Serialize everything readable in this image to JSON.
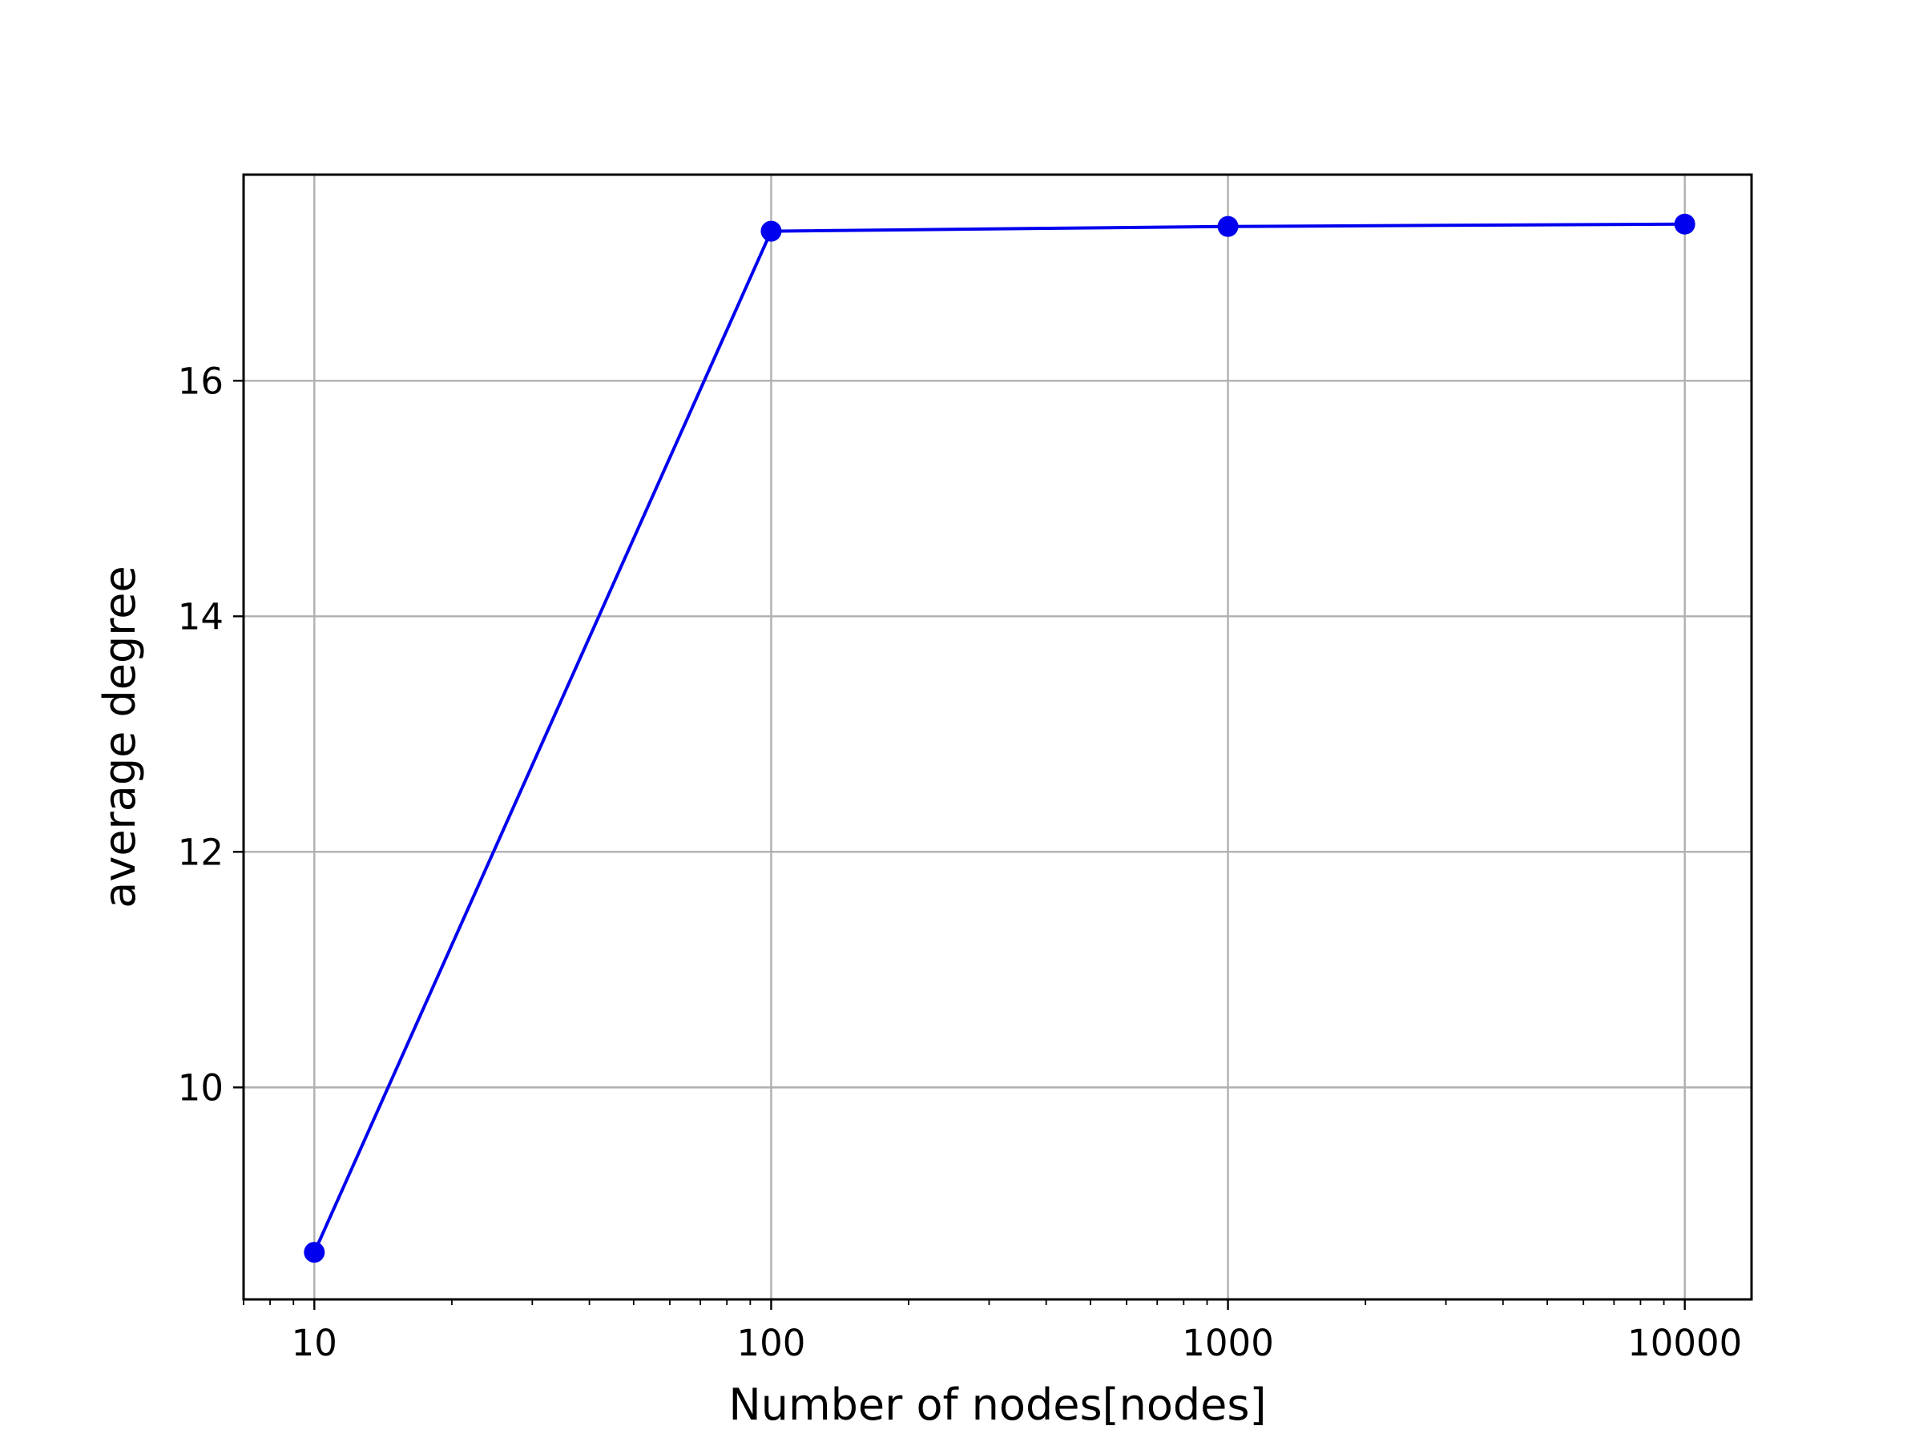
{
  "chart_data": {
    "type": "line",
    "title": "",
    "xlabel": "Number of nodes[nodes]",
    "ylabel": "average degree",
    "x_scale": "log",
    "xlim": [
      7,
      14000
    ],
    "ylim": [
      8.2,
      17.75
    ],
    "x_ticks": [
      {
        "value": 10,
        "label": "10"
      },
      {
        "value": 100,
        "label": "100"
      },
      {
        "value": 1000,
        "label": "1000"
      },
      {
        "value": 10000,
        "label": "10000"
      }
    ],
    "y_ticks": [
      {
        "value": 10,
        "label": "10"
      },
      {
        "value": 12,
        "label": "12"
      },
      {
        "value": 14,
        "label": "14"
      },
      {
        "value": 16,
        "label": "16"
      }
    ],
    "grid": true,
    "legend": "none",
    "series": [
      {
        "color": "#0000ee",
        "marker": "circle",
        "x": [
          10,
          100,
          1000,
          10000
        ],
        "y": [
          8.6,
          17.27,
          17.31,
          17.33
        ]
      }
    ]
  }
}
